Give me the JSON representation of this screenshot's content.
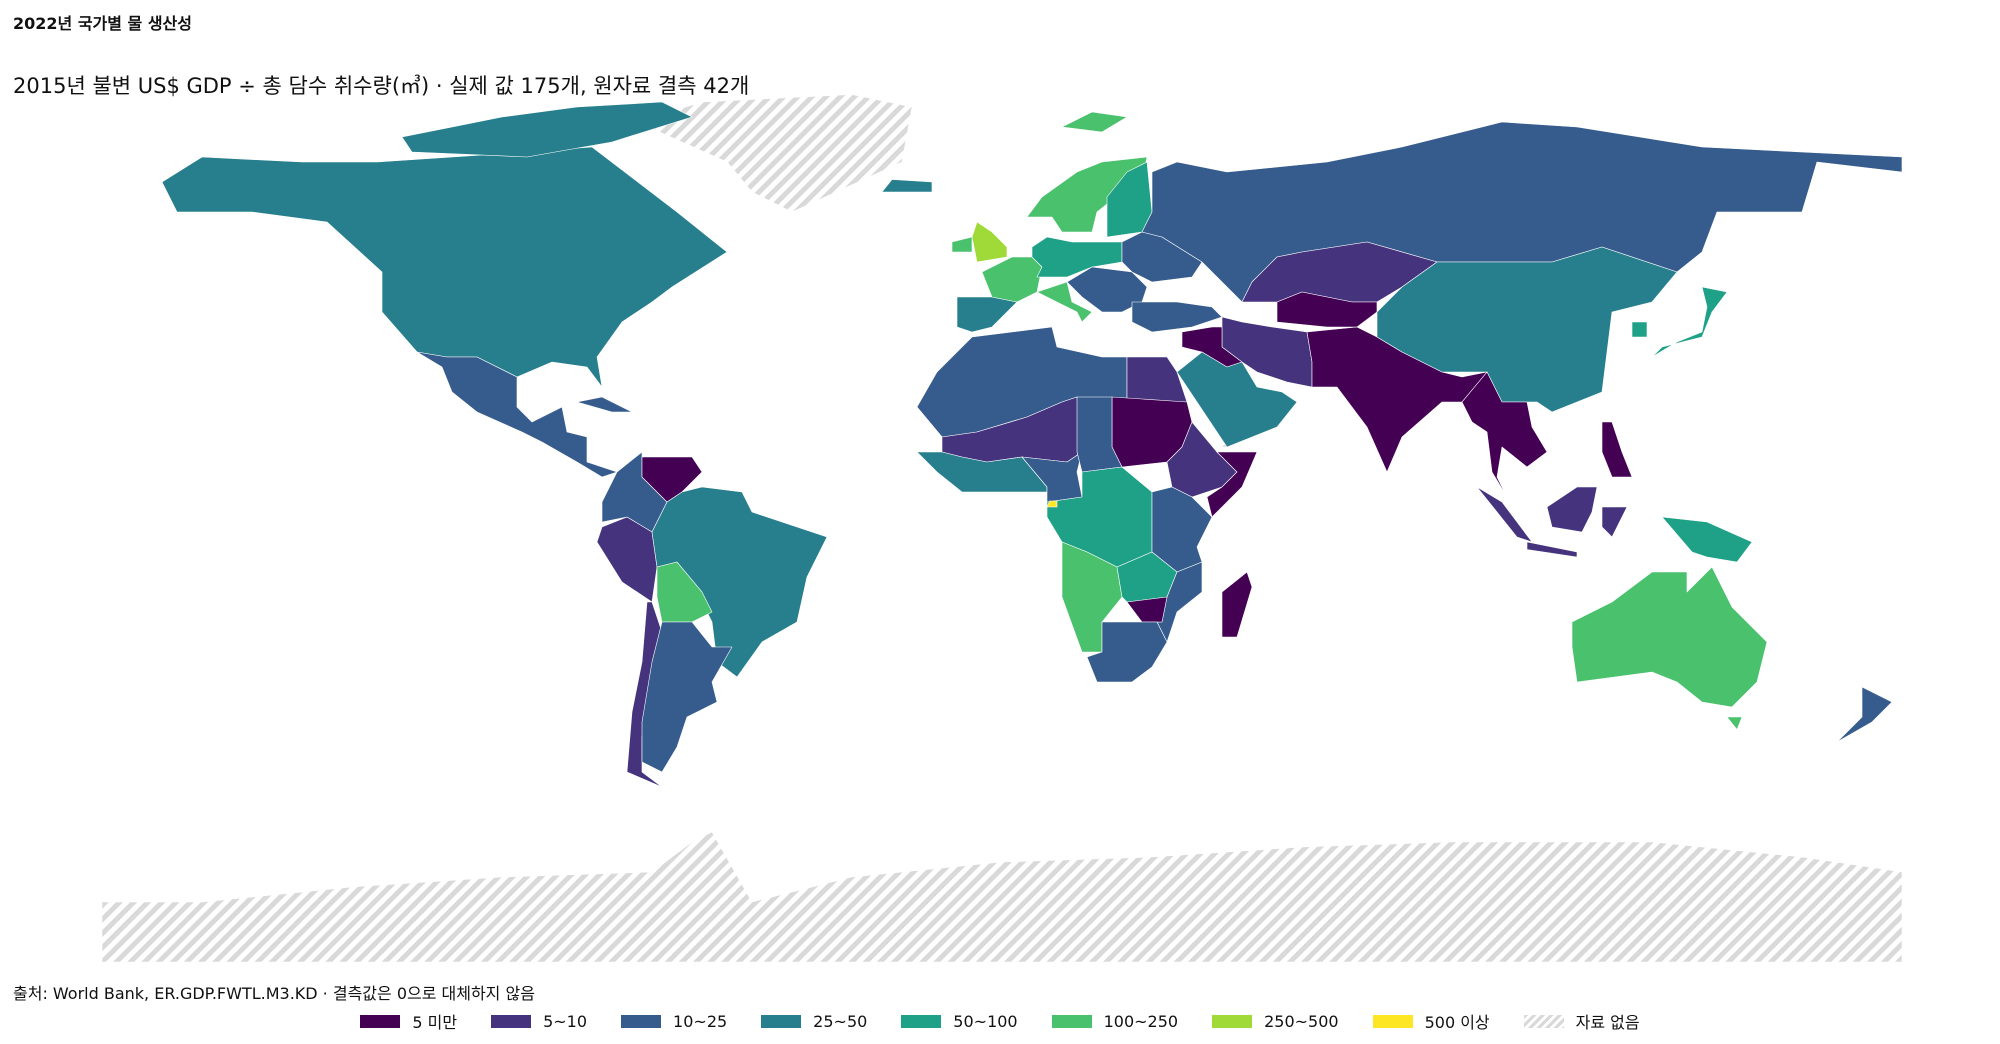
{
  "header": {
    "title": "2022년 국가별 물 생산성",
    "subtitle": "2015년 불변 US$ GDP ÷ 총 담수 취수량(㎥) · 실제 값 175개, 원자료 결측 42개"
  },
  "legend": {
    "items": [
      {
        "label": "5 미만",
        "color": "#440154"
      },
      {
        "label": "5~10",
        "color": "#46337e"
      },
      {
        "label": "10~25",
        "color": "#365c8d"
      },
      {
        "label": "25~50",
        "color": "#277f8e"
      },
      {
        "label": "50~100",
        "color": "#1fa187"
      },
      {
        "label": "100~250",
        "color": "#4ac16d"
      },
      {
        "label": "250~500",
        "color": "#a0da39"
      },
      {
        "label": "500 이상",
        "color": "#fde725"
      },
      {
        "label": "자료 없음",
        "color": "#d9d9d9"
      }
    ]
  },
  "footer": {
    "source": "출처: World Bank, ER.GDP.FWTL.M3.KD · 결측값은 0으로 대체하지 않음"
  }
}
